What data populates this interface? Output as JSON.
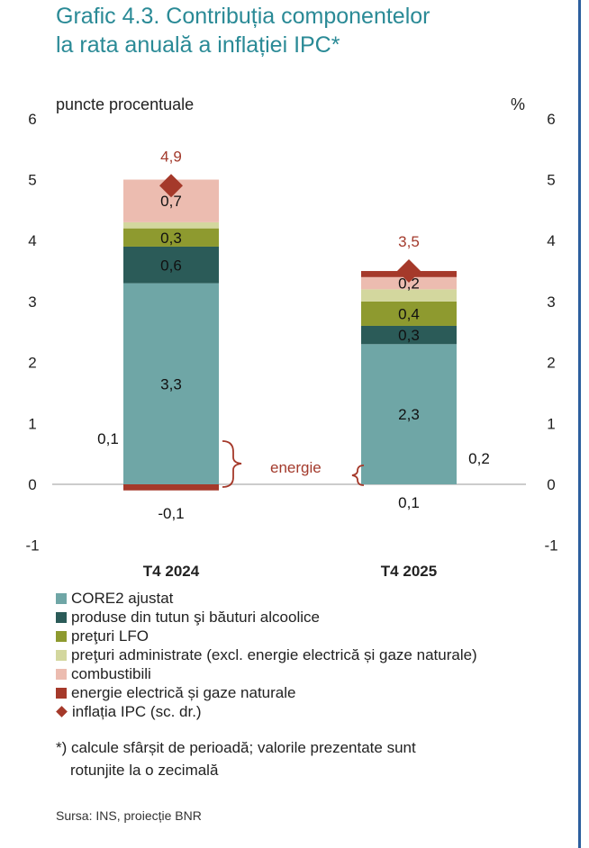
{
  "title": {
    "line1": "Grafic 4.3. Contribuția componentelor",
    "line2": "la rata anuală a inflației IPC*"
  },
  "chart_data": {
    "type": "bar",
    "stacked": true,
    "left_unit": "puncte procentuale",
    "right_unit": "%",
    "ylim": [
      -1,
      6
    ],
    "yticks": [
      "-1",
      "0",
      "1",
      "2",
      "3",
      "4",
      "5",
      "6"
    ],
    "categories": [
      "T4 2024",
      "T4 2025"
    ],
    "series": [
      {
        "name": "CORE2 ajustat",
        "color": "#6fa6a6",
        "values": [
          3.3,
          2.3
        ],
        "labels": [
          "3,3",
          "2,3"
        ]
      },
      {
        "name": "produse din tutun şi băuturi alcoolice",
        "color": "#2b5b58",
        "values": [
          0.6,
          0.3
        ],
        "labels": [
          "0,6",
          "0,3"
        ]
      },
      {
        "name": "preţuri LFO",
        "color": "#8e9a2f",
        "values": [
          0.3,
          0.4
        ],
        "labels": [
          "0,3",
          "0,4"
        ]
      },
      {
        "name": "preţuri administrate (excl. energie electrică și gaze naturale)",
        "color": "#d3d79e",
        "values": [
          0.1,
          0.2
        ],
        "labels": [
          "0,1",
          "0,2"
        ]
      },
      {
        "name": "combustibili",
        "color": "#ecbcb0",
        "values": [
          0.7,
          0.2
        ],
        "labels": [
          "0,7",
          "0,2"
        ]
      },
      {
        "name": "energie electrică și gaze naturale",
        "color": "#a5392a",
        "values": [
          -0.1,
          0.1
        ],
        "labels": [
          "-0,1",
          "0,1"
        ]
      }
    ],
    "cpi": {
      "name": "inflația IPC (sc. dr.)",
      "color": "#a5392a",
      "values": [
        4.9,
        3.5
      ],
      "labels": [
        "4,9",
        "3,5"
      ]
    },
    "annotation": "energie",
    "grid": false
  },
  "footnote": {
    "line1": "*) calcule sfârșit de perioadă; valorile prezentate sunt",
    "line2": "rotunjite la o zecimală"
  },
  "source": "Sursa: INS, proiecție BNR"
}
